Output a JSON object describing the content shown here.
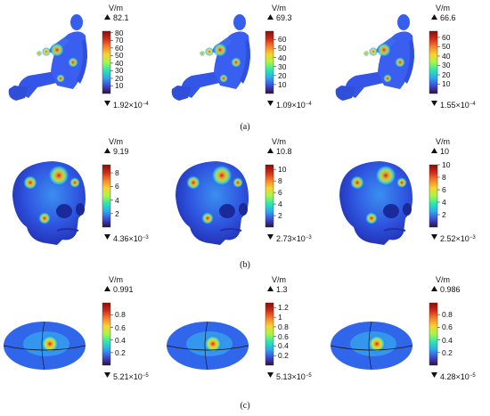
{
  "unit": "V/m",
  "captions": [
    "(a)",
    "(b)",
    "(c)"
  ],
  "colors": {
    "scale": [
      "#30123b",
      "#3e49d6",
      "#2fa7f0",
      "#2ae6b0",
      "#a6f64a",
      "#f6d531",
      "#f8812a",
      "#d02b1c",
      "#8a0d05"
    ]
  },
  "rows": [
    {
      "model": "body-model",
      "panels": [
        {
          "max": "82.1",
          "min_mant": "1.92",
          "min_exp": "−4",
          "ticks": [
            "80",
            "70",
            "60",
            "50",
            "40",
            "30",
            "20",
            "10"
          ],
          "tick_vals": [
            80,
            70,
            60,
            50,
            40,
            30,
            20,
            10
          ],
          "range": [
            0.000192,
            82.1
          ]
        },
        {
          "max": "69.3",
          "min_mant": "1.09",
          "min_exp": "−4",
          "ticks": [
            "60",
            "50",
            "40",
            "30",
            "20",
            "10"
          ],
          "tick_vals": [
            60,
            50,
            40,
            30,
            20,
            10
          ],
          "range": [
            0.000109,
            69.3
          ]
        },
        {
          "max": "66.6",
          "min_mant": "1.55",
          "min_exp": "−4",
          "ticks": [
            "60",
            "50",
            "40",
            "30",
            "20",
            "10"
          ],
          "tick_vals": [
            60,
            50,
            40,
            30,
            20,
            10
          ],
          "range": [
            0.000155,
            66.6
          ]
        }
      ]
    },
    {
      "model": "skull-model",
      "panels": [
        {
          "max": "9.19",
          "min_mant": "4.36",
          "min_exp": "−3",
          "ticks": [
            "8",
            "6",
            "4",
            "2"
          ],
          "tick_vals": [
            8,
            6,
            4,
            2
          ],
          "range": [
            0.00436,
            9.19
          ]
        },
        {
          "max": "10.8",
          "min_mant": "2.73",
          "min_exp": "−3",
          "ticks": [
            "10",
            "8",
            "6",
            "4",
            "2"
          ],
          "tick_vals": [
            10,
            8,
            6,
            4,
            2
          ],
          "range": [
            0.00273,
            10.8
          ]
        },
        {
          "max": "10",
          "min_mant": "2.52",
          "min_exp": "−3",
          "ticks": [
            "10",
            "8",
            "6",
            "4",
            "2"
          ],
          "tick_vals": [
            10,
            8,
            6,
            4,
            2
          ],
          "range": [
            0.00252,
            10
          ]
        }
      ]
    },
    {
      "model": "ellipsoid-model",
      "panels": [
        {
          "max": "0.991",
          "min_mant": "5.21",
          "min_exp": "−5",
          "ticks": [
            "0.8",
            "0.6",
            "0.4",
            "0.2"
          ],
          "tick_vals": [
            0.8,
            0.6,
            0.4,
            0.2
          ],
          "range": [
            5.21e-05,
            0.991
          ]
        },
        {
          "max": "1.3",
          "min_mant": "5.13",
          "min_exp": "−5",
          "ticks": [
            "1.2",
            "1",
            "0.8",
            "0.6",
            "0.4",
            "0.2"
          ],
          "tick_vals": [
            1.2,
            1,
            0.8,
            0.6,
            0.4,
            0.2
          ],
          "range": [
            5.13e-05,
            1.3
          ]
        },
        {
          "max": "0.986",
          "min_mant": "4.28",
          "min_exp": "−5",
          "ticks": [
            "0.8",
            "0.6",
            "0.4",
            "0.2"
          ],
          "tick_vals": [
            0.8,
            0.6,
            0.4,
            0.2
          ],
          "range": [
            4.28e-05,
            0.986
          ]
        }
      ]
    }
  ]
}
